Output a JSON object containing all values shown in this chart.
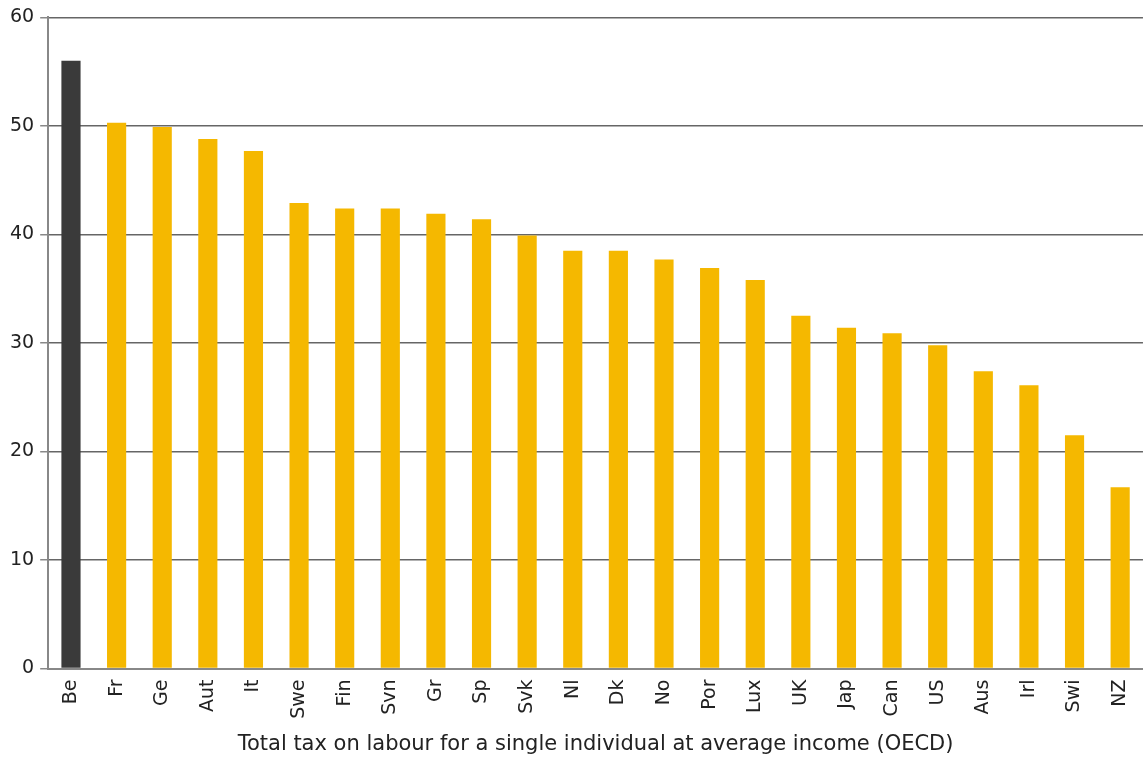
{
  "chart_data": {
    "type": "bar",
    "xlabel": "Total tax on labour for a single individual at average income (OECD)",
    "categories": [
      "Be",
      "Fr",
      "Ge",
      "Aut",
      "It",
      "Swe",
      "Fin",
      "Svn",
      "Gr",
      "Sp",
      "Svk",
      "Nl",
      "Dk",
      "No",
      "Por",
      "Lux",
      "UK",
      "Jap",
      "Can",
      "US",
      "Aus",
      "Irl",
      "Swi",
      "NZ"
    ],
    "values": [
      56,
      50.3,
      49.9,
      48.8,
      47.7,
      42.9,
      42.4,
      42.4,
      41.9,
      41.4,
      39.9,
      38.5,
      38.5,
      37.7,
      36.9,
      35.8,
      32.5,
      31.4,
      30.9,
      29.8,
      27.4,
      26.1,
      21.5,
      16.7
    ],
    "colors": [
      "#3a3a3a",
      "#f5b800",
      "#f5b800",
      "#f5b800",
      "#f5b800",
      "#f5b800",
      "#f5b800",
      "#f5b800",
      "#f5b800",
      "#f5b800",
      "#f5b800",
      "#f5b800",
      "#f5b800",
      "#f5b800",
      "#f5b800",
      "#f5b800",
      "#f5b800",
      "#f5b800",
      "#f5b800",
      "#f5b800",
      "#f5b800",
      "#f5b800",
      "#f5b800",
      "#f5b800"
    ],
    "ylim": [
      0,
      60
    ],
    "yticks": [
      0,
      10,
      20,
      30,
      40,
      50,
      60
    ],
    "grid": "y"
  }
}
